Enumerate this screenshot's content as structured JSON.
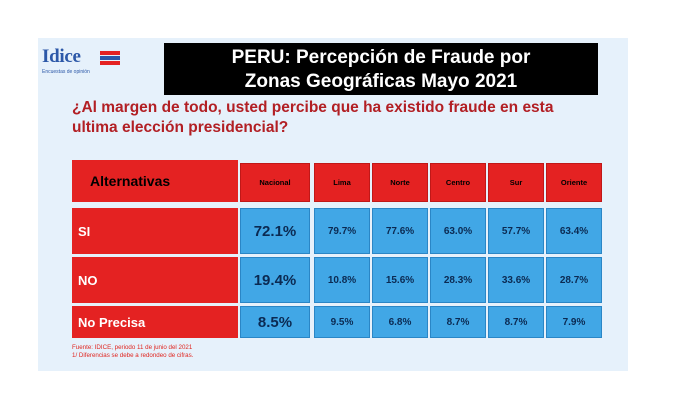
{
  "logo": {
    "word": "Idice",
    "tagline": "Encuestas de opinión"
  },
  "title_lines": [
    "PERU: Percepción de Fraude por",
    "Zonas Geográficas Mayo 2021"
  ],
  "question_lines": [
    "¿Al margen de todo, usted percibe que ha existido fraude en esta",
    "ultima elección presidencial?"
  ],
  "chart_data": {
    "type": "table",
    "title": "PERU: Percepción de Fraude por Zonas Geográficas Mayo 2021",
    "row_header": "Alternativas",
    "columns": [
      "Nacional",
      "Lima",
      "Norte",
      "Centro",
      "Sur",
      "Oriente"
    ],
    "rows": [
      {
        "label": "SI",
        "values": [
          "72.1%",
          "79.7%",
          "77.6%",
          "63.0%",
          "57.7%",
          "63.4%"
        ]
      },
      {
        "label": "NO",
        "values": [
          "19.4%",
          "10.8%",
          "15.6%",
          "28.3%",
          "33.6%",
          "28.7%"
        ]
      },
      {
        "label": "No Precisa",
        "values": [
          "8.5%",
          "9.5%",
          "6.8%",
          "8.7%",
          "8.7%",
          "7.9%"
        ]
      }
    ]
  },
  "footer_lines": [
    "Fuente: IDICE, periodo 11 de junio del 2021",
    "1/ Diferencias se debe a redondeo de cifras."
  ],
  "colors": {
    "header_red": "#e42222",
    "cell_blue": "#41a7e6",
    "question_red": "#b21f24",
    "background": "#e6f1fb"
  }
}
